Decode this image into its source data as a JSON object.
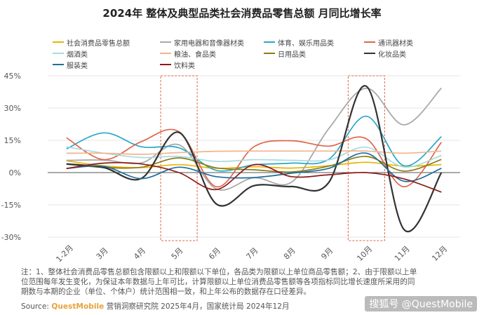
{
  "title": "2024年 整体及典型品类社会消费品零售总额 月同比增长率",
  "chart_data": {
    "type": "line",
    "categories": [
      "1-2月",
      "3月",
      "4月",
      "5月",
      "6月",
      "7月",
      "8月",
      "9月",
      "10月",
      "11月",
      "12月"
    ],
    "ylim": [
      -30,
      45
    ],
    "yticks": [
      "-30%",
      "-15%",
      "0%",
      "15%",
      "30%",
      "45%"
    ],
    "ytick_values": [
      -30,
      -15,
      0,
      15,
      30,
      45
    ],
    "highlight_categories": [
      "5月",
      "10月"
    ],
    "series": [
      {
        "name": "社会消费品零售总额",
        "color": "#e8b400",
        "values": [
          5.5,
          3.1,
          2.3,
          3.7,
          2.0,
          2.7,
          2.1,
          3.2,
          4.8,
          3.0,
          3.7
        ]
      },
      {
        "name": "家用电器和音像器材类",
        "color": "#a9a9a9",
        "values": [
          5.7,
          5.8,
          4.5,
          12.9,
          -7.6,
          -2.4,
          -4.5,
          20.5,
          39.2,
          22.2,
          39.3
        ]
      },
      {
        "name": "体育、娱乐用品类",
        "color": "#2aa7c8",
        "values": [
          11.0,
          18.5,
          12.0,
          11.5,
          1.0,
          3.6,
          4.4,
          6.2,
          26.2,
          3.2,
          16.7
        ]
      },
      {
        "name": "通讯器材类",
        "color": "#e0654a",
        "values": [
          16.2,
          6.0,
          14.4,
          19.0,
          -6.6,
          12.0,
          14.8,
          12.3,
          15.7,
          -6.6,
          14.1
        ]
      },
      {
        "name": "烟酒类",
        "color": "#a8dbe0",
        "values": [
          12.0,
          9.0,
          7.0,
          7.5,
          5.2,
          6.0,
          5.7,
          5.9,
          11.8,
          2.6,
          8.0
        ]
      },
      {
        "name": "粮油、食品类",
        "color": "#f2b48e",
        "values": [
          9.0,
          9.0,
          8.5,
          9.3,
          9.9,
          10.0,
          10.0,
          10.0,
          10.0,
          9.0,
          10.0
        ]
      },
      {
        "name": "日用品类",
        "color": "#8c7a1a",
        "values": [
          3.9,
          2.4,
          2.5,
          6.8,
          2.2,
          1.3,
          0.3,
          3.0,
          7.5,
          0.7,
          6.1
        ]
      },
      {
        "name": "化妆品类",
        "color": "#333333",
        "values": [
          4.0,
          2.3,
          -2.7,
          18.7,
          -14.6,
          -6.1,
          -6.5,
          -4.5,
          40.1,
          -26.4,
          0.0
        ]
      },
      {
        "name": "服装类",
        "color": "#1e6f9c",
        "values": [
          1.9,
          2.9,
          -2.8,
          2.5,
          -1.9,
          -2.3,
          -0.3,
          2.0,
          9.0,
          -4.0,
          2.0
        ]
      },
      {
        "name": "饮料类",
        "color": "#8b1a1a",
        "values": [
          1.9,
          4.4,
          4.0,
          0.0,
          -7.9,
          3.7,
          -1.9,
          -1.0,
          0.0,
          -2.9,
          -9.1
        ]
      }
    ]
  },
  "notes": [
    "注：1、整体社会消费品零售总额包含限额以上和限额以下单位，各品类为限额以上单位商品零售额；2、由于限额以上单",
    "位范围每年发生变化，为保证本年数据与上年可比，计算限额以上单位消费品零售额等各项指标同比增长速度所采用的同",
    "期数与本期的企业（单位、个体户）统计范围相一致，和上年公布的数据存在口径差异。"
  ],
  "source": {
    "prefix": "Source: ",
    "brand": "QuestMobile",
    "rest": " 营销洞察研究院 2025年4月，国家统计局 2024年12月"
  },
  "watermark": "搜狐号 @QuestMobile"
}
